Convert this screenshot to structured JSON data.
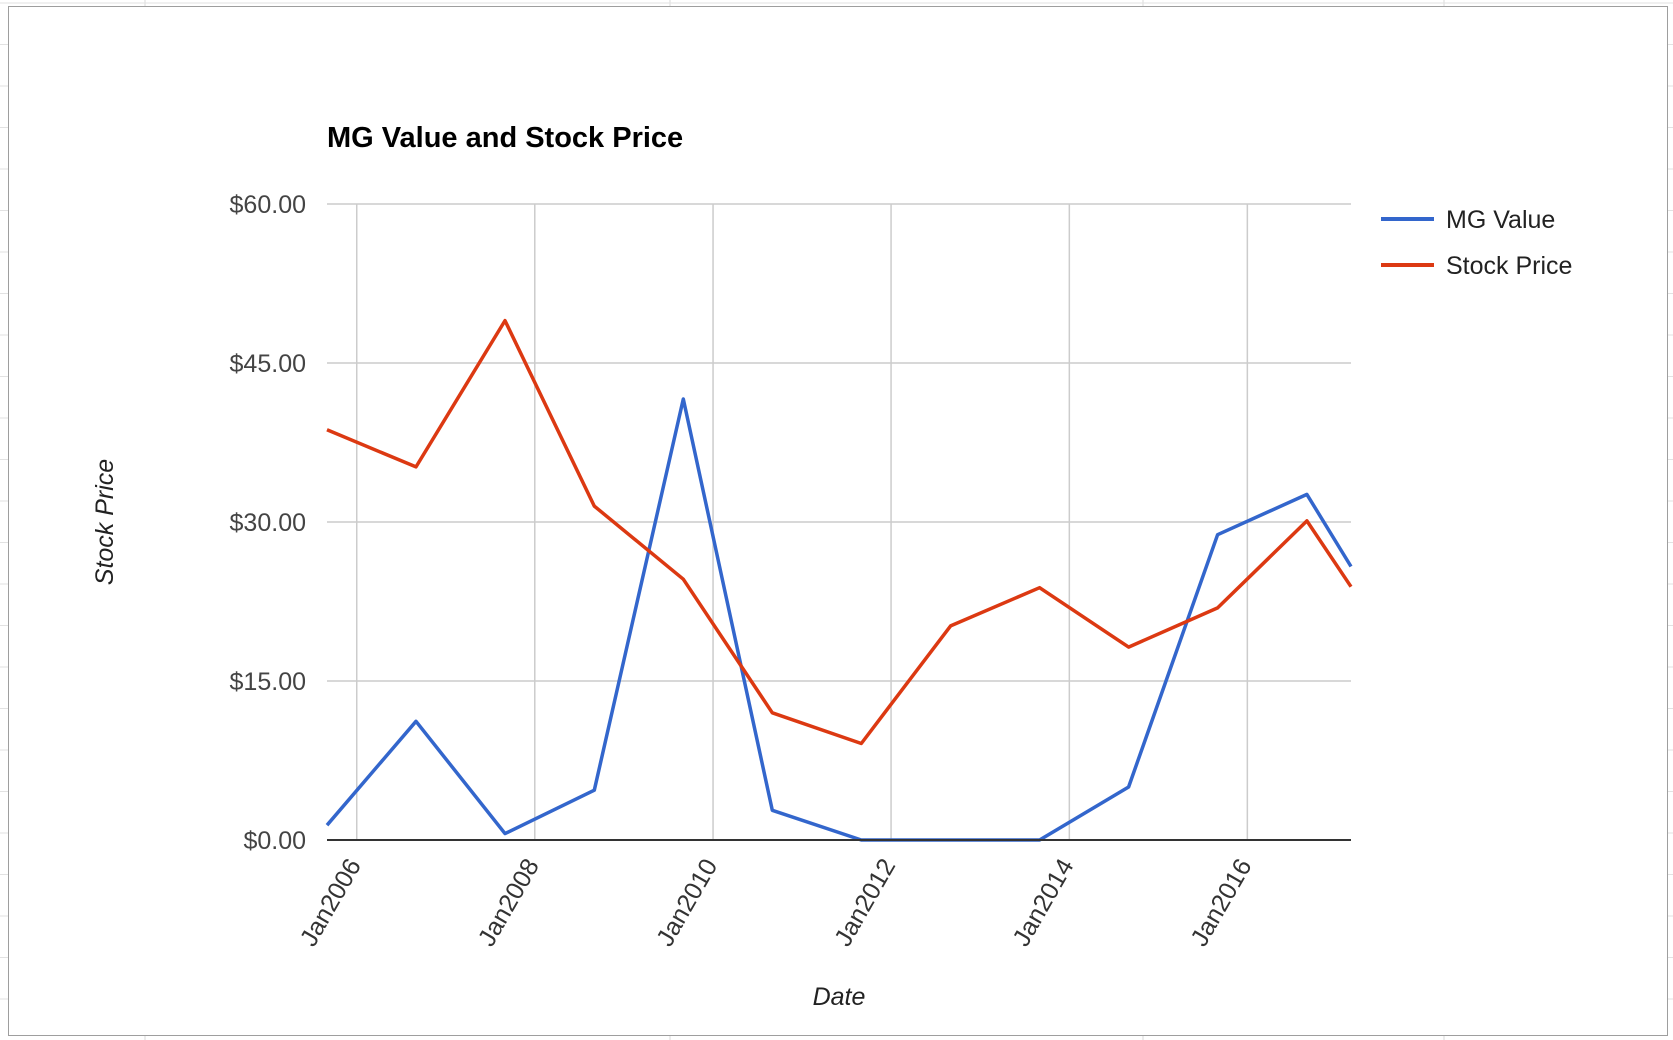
{
  "chart_data": {
    "type": "line",
    "title": "MG Value and Stock Price",
    "xlabel": "Date",
    "ylabel": "Stock Price",
    "xlim": [
      "2005-09-01",
      "2017-03-01"
    ],
    "ylim": [
      0,
      60
    ],
    "y_ticks": [
      {
        "value": 0,
        "label": "$0.00"
      },
      {
        "value": 15,
        "label": "$15.00"
      },
      {
        "value": 30,
        "label": "$30.00"
      },
      {
        "value": 45,
        "label": "$45.00"
      },
      {
        "value": 60,
        "label": "$60.00"
      }
    ],
    "x_ticks": [
      {
        "date": "2006-01-01",
        "label": "Jan2006"
      },
      {
        "date": "2008-01-01",
        "label": "Jan2008"
      },
      {
        "date": "2010-01-01",
        "label": "Jan2010"
      },
      {
        "date": "2012-01-01",
        "label": "Jan2012"
      },
      {
        "date": "2014-01-01",
        "label": "Jan2014"
      },
      {
        "date": "2016-01-01",
        "label": "Jan2016"
      }
    ],
    "grid": true,
    "legend": "right",
    "x": [
      "2005-09-01",
      "2006-09-01",
      "2007-09-01",
      "2008-09-01",
      "2009-09-01",
      "2010-09-01",
      "2011-09-01",
      "2012-09-01",
      "2013-09-01",
      "2014-09-01",
      "2015-09-01",
      "2016-09-01",
      "2017-03-01"
    ],
    "series": [
      {
        "name": "MG Value",
        "color": "#3366cc",
        "values": [
          1.4,
          11.2,
          0.6,
          4.7,
          41.6,
          2.8,
          0.0,
          0.0,
          0.0,
          5.0,
          28.8,
          32.6,
          25.8
        ]
      },
      {
        "name": "Stock Price",
        "color": "#dc3912",
        "values": [
          38.7,
          35.2,
          49.0,
          31.5,
          24.6,
          12.0,
          9.1,
          20.2,
          23.8,
          18.2,
          21.9,
          30.1,
          23.9
        ]
      }
    ]
  }
}
